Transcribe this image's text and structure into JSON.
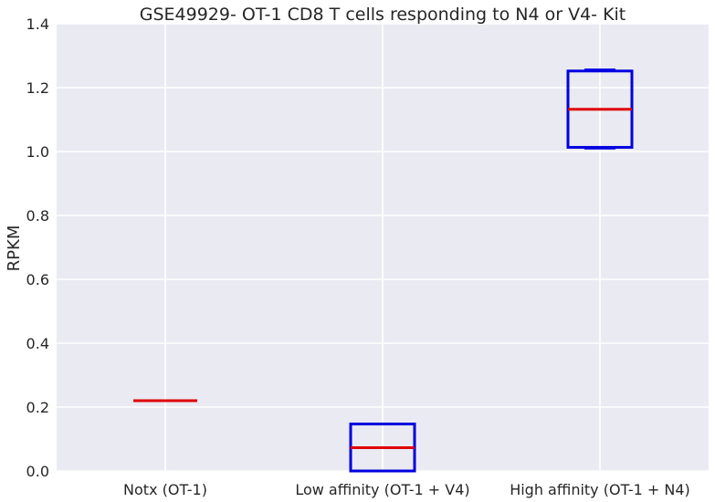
{
  "chart_data": {
    "type": "box",
    "title": "GSE49929- OT-1 CD8 T cells responding to N4 or V4- Kit",
    "xlabel": "",
    "ylabel": "RPKM",
    "ylim": [
      0,
      1.4
    ],
    "yticks": [
      0.0,
      0.2,
      0.4,
      0.6,
      0.8,
      1.0,
      1.2,
      1.4
    ],
    "ytick_labels": [
      "0.0",
      "0.2",
      "0.4",
      "0.6",
      "0.8",
      "1.0",
      "1.2",
      "1.4"
    ],
    "grid": true,
    "categories": [
      "Notx (OT-1)",
      "Low affinity (OT-1 + V4)",
      "High affinity (OT-1 + N4)"
    ],
    "boxes": [
      {
        "min": 0.22,
        "q1": 0.22,
        "median": 0.22,
        "q3": 0.22,
        "max": 0.22
      },
      {
        "min": 0.0,
        "q1": 0.0,
        "median": 0.073,
        "q3": 0.147,
        "max": 0.147
      },
      {
        "min": 1.01,
        "q1": 1.013,
        "median": 1.132,
        "q3": 1.252,
        "max": 1.256
      }
    ],
    "colors": {
      "box": "#0000e0",
      "median": "#e00000",
      "grid": "#ffffff",
      "background": "#eaeaf2",
      "text": "#262626"
    }
  }
}
